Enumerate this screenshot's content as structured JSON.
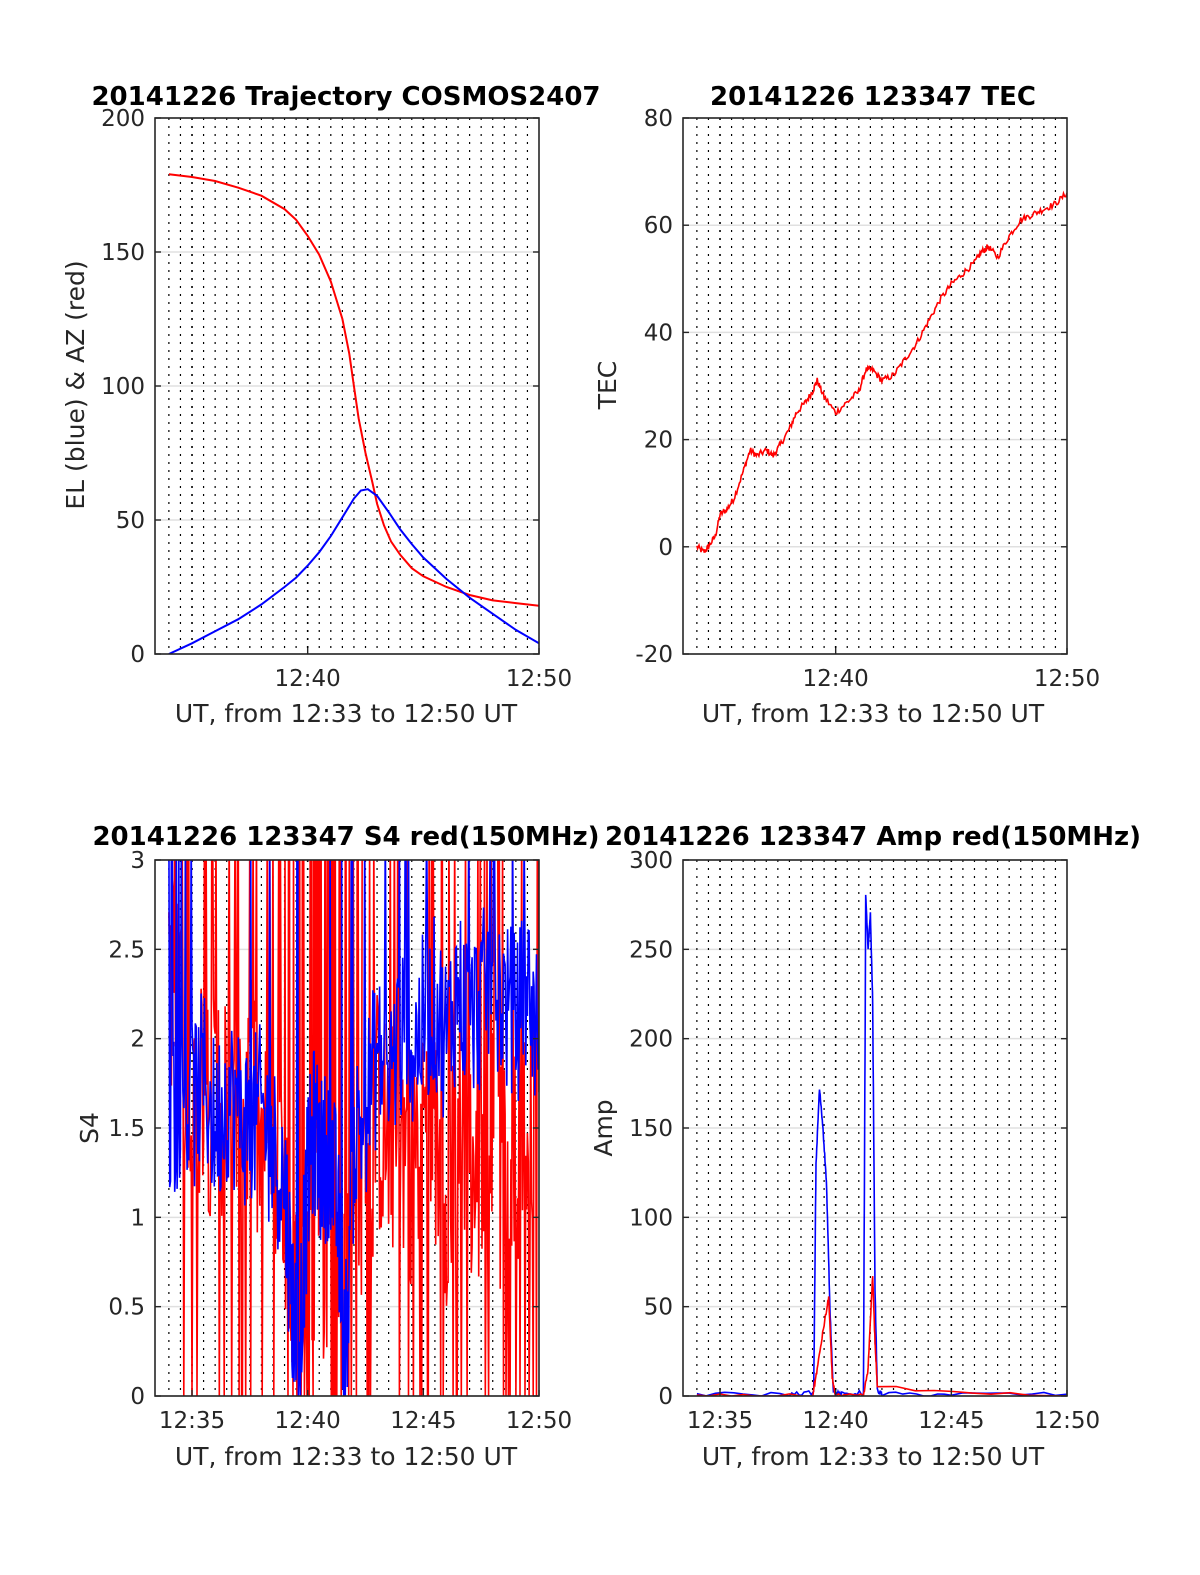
{
  "chart_data": [
    {
      "type": "line",
      "title": "20141226 Trajectory COSMOS2407",
      "xlabel": "UT, from 12:33 to 12:50 UT",
      "ylabel": "EL (blue) & AZ (red)",
      "xlim_minutes": [
        33.4,
        50
      ],
      "ylim": [
        0,
        200
      ],
      "yticks": [
        0,
        50,
        100,
        150,
        200
      ],
      "xticks": [
        {
          "value": 40,
          "label": "12:40"
        },
        {
          "value": 50,
          "label": "12:50"
        }
      ],
      "grid": "dotted vertical every 0.5 min, light horizontal",
      "series": [
        {
          "color": "#ff0000",
          "x": [
            34,
            35,
            36,
            37,
            38,
            39,
            39.5,
            40,
            40.5,
            41,
            41.5,
            41.8,
            42,
            42.2,
            42.5,
            42.8,
            43,
            43.3,
            43.6,
            44,
            44.5,
            45,
            46,
            47,
            48,
            49,
            50
          ],
          "y": [
            179,
            178,
            176.5,
            174,
            171,
            166,
            162,
            156,
            149,
            139,
            125,
            112,
            100,
            88,
            75,
            64,
            56,
            48,
            42,
            37,
            32,
            29,
            25,
            22,
            20,
            19,
            18
          ]
        },
        {
          "color": "#0000ff",
          "x": [
            34,
            35,
            36,
            37,
            38,
            39,
            39.5,
            40,
            40.5,
            41,
            41.5,
            42,
            42.3,
            42.6,
            43,
            43.5,
            44,
            44.5,
            45,
            46,
            47,
            48,
            49,
            50
          ],
          "y": [
            0,
            4,
            8.5,
            13,
            18.5,
            25,
            28.5,
            33,
            38,
            44,
            51,
            58,
            61,
            61.5,
            59,
            53,
            46.5,
            41,
            36,
            28,
            21,
            15,
            9,
            4
          ]
        }
      ]
    },
    {
      "type": "line",
      "title": "20141226 123347 TEC",
      "xlabel": "UT, from 12:33 to 12:50 UT",
      "ylabel": "TEC",
      "xlim_minutes": [
        33.4,
        50
      ],
      "ylim": [
        -20,
        80
      ],
      "yticks": [
        -20,
        0,
        20,
        40,
        60,
        80
      ],
      "xticks": [
        {
          "value": 40,
          "label": "12:40"
        },
        {
          "value": 50,
          "label": "12:50"
        }
      ],
      "series": [
        {
          "color": "#ff0000",
          "x": [
            34,
            34.3,
            34.5,
            34.8,
            35,
            35.3,
            35.6,
            36,
            36.3,
            36.6,
            37,
            37.3,
            37.6,
            38,
            38.3,
            38.7,
            39,
            39.2,
            39.5,
            40,
            40.5,
            41,
            41.3,
            41.6,
            42,
            42.5,
            43,
            43.5,
            44,
            44.5,
            45,
            45.5,
            46,
            46.3,
            46.6,
            47,
            47.5,
            48,
            48.5,
            49,
            49.5,
            50
          ],
          "y": [
            0,
            -1,
            0,
            2,
            6,
            7,
            9,
            14,
            18,
            17,
            18,
            17,
            19,
            22,
            25,
            27,
            29,
            31,
            28,
            25,
            27,
            29,
            33,
            33,
            31,
            32,
            35,
            38,
            42,
            46,
            49,
            51,
            53,
            55,
            56,
            54,
            58,
            61,
            62,
            63,
            64,
            66
          ]
        }
      ]
    },
    {
      "type": "line",
      "title": "20141226 123347 S4 red(150MHz)",
      "xlabel": "UT, from 12:33 to 12:50 UT",
      "ylabel": "S4",
      "xlim_minutes": [
        33.4,
        50
      ],
      "ylim": [
        0,
        3
      ],
      "yticks": [
        0,
        0.5,
        1,
        1.5,
        2,
        2.5,
        3
      ],
      "xticks": [
        {
          "value": 35,
          "label": "12:35"
        },
        {
          "value": 40,
          "label": "12:40"
        },
        {
          "value": 45,
          "label": "12:45"
        },
        {
          "value": 50,
          "label": "12:50"
        }
      ],
      "series": [
        {
          "color": "#ff0000",
          "x": [
            34,
            34.5,
            35,
            35.5,
            36,
            36.5,
            37,
            37.5,
            38,
            38.5,
            39,
            39.3,
            39.6,
            40,
            40.3,
            40.6,
            41,
            41.3,
            41.6,
            42,
            42.5,
            43,
            43.5,
            44,
            44.5,
            45,
            45.5,
            46,
            46.5,
            47,
            47.5,
            48,
            48.5,
            49,
            49.5,
            50
          ],
          "y": [
            2.5,
            2.0,
            1.6,
            1.9,
            1.5,
            1.8,
            1.4,
            1.7,
            1.3,
            1.5,
            0.9,
            0.6,
            0.4,
            0.9,
            1.0,
            0.8,
            1.1,
            0.8,
            0.5,
            1.3,
            1.2,
            1.6,
            1.4,
            1.5,
            1.3,
            1.6,
            1.4,
            1.2,
            1.5,
            1.3,
            1.1,
            1.4,
            1.2,
            1.5,
            1.3,
            1.7
          ],
          "amplitude": "noisy, spikes 0–3"
        },
        {
          "color": "#0000ff",
          "x": [
            34,
            34.5,
            35,
            35.5,
            36,
            36.5,
            37,
            37.5,
            38,
            38.5,
            39,
            39.3,
            39.6,
            40,
            40.3,
            40.6,
            41,
            41.3,
            41.6,
            42,
            42.5,
            43,
            43.5,
            44,
            44.5,
            45,
            45.5,
            46,
            46.5,
            47,
            47.5,
            48,
            48.5,
            49,
            49.5,
            50
          ],
          "y": [
            1.5,
            1.7,
            1.6,
            1.8,
            1.5,
            1.7,
            1.6,
            1.5,
            1.6,
            1.4,
            1.2,
            0.6,
            0.2,
            1.2,
            1.5,
            1.3,
            1.4,
            1.0,
            0.15,
            1.4,
            1.6,
            1.9,
            1.8,
            2.0,
            1.9,
            2.1,
            2.2,
            2.0,
            2.3,
            2.1,
            2.2,
            2.4,
            2.2,
            2.1,
            2.3,
            2.0
          ],
          "amplitude": "noisy, spikes 0–3"
        }
      ]
    },
    {
      "type": "line",
      "title": "20141226 123347 Amp red(150MHz)",
      "xlabel": "UT, from 12:33 to 12:50 UT",
      "ylabel": "Amp",
      "xlim_minutes": [
        33.4,
        50
      ],
      "ylim": [
        0,
        300
      ],
      "yticks": [
        0,
        50,
        100,
        150,
        200,
        250,
        300
      ],
      "xticks": [
        {
          "value": 35,
          "label": "12:35"
        },
        {
          "value": 40,
          "label": "12:40"
        },
        {
          "value": 45,
          "label": "12:45"
        },
        {
          "value": 50,
          "label": "12:50"
        }
      ],
      "series": [
        {
          "color": "#0000ff",
          "x": [
            34,
            38,
            39.05,
            39.15,
            39.3,
            39.45,
            39.6,
            39.75,
            39.9,
            40.3,
            41.2,
            41.3,
            41.4,
            41.5,
            41.6,
            41.7,
            41.8,
            42.0,
            45,
            50
          ],
          "y": [
            1,
            1,
            2,
            130,
            172,
            150,
            120,
            50,
            2,
            1,
            2,
            280,
            250,
            270,
            220,
            60,
            3,
            1,
            1,
            1
          ]
        },
        {
          "color": "#ff0000",
          "x": [
            34,
            39.0,
            39.2,
            39.5,
            39.7,
            39.85,
            40.0,
            41.2,
            41.4,
            41.6,
            41.7,
            41.8,
            50
          ],
          "y": [
            0,
            0,
            15,
            40,
            55,
            10,
            0,
            0,
            15,
            68,
            30,
            5,
            0
          ]
        }
      ]
    }
  ]
}
